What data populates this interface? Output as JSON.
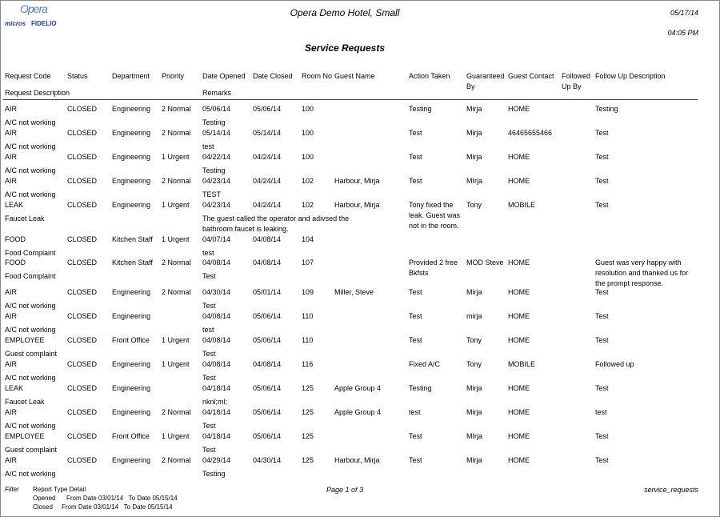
{
  "header": {
    "logo": {
      "brand": "Opera",
      "micros": "micros",
      "fidelio": "FIDELIO"
    },
    "hotel": "Opera Demo Hotel, Small",
    "date": "05/17/14",
    "time": "04:05 PM",
    "title": "Service Requests"
  },
  "table": {
    "header": {
      "code": "Request Code",
      "status": "Status",
      "department": "Department",
      "priority": "Priority",
      "opened": "Date Opened",
      "closed": "Date Closed",
      "room": "Room No",
      "guest": "Guest Name",
      "action": "Action Taken",
      "guaranteed": "Guaranteed By",
      "contact": "Guest Contact",
      "followed": "Followed Up By",
      "follow_desc": "Follow Up Description",
      "description": "Request Description",
      "remarks": "Remarks"
    },
    "rows": [
      {
        "code": "AIR",
        "status": "CLOSED",
        "department": "Engineering",
        "priority": "2 Normal",
        "opened": "05/06/14",
        "closed": "05/06/14",
        "room": "100",
        "action": "Testing",
        "guaranteed": "Mirja",
        "contact": "HOME",
        "follow_desc": "Testing",
        "description": "A/C not working",
        "remarks": "Testing"
      },
      {
        "code": "AIR",
        "status": "CLOSED",
        "department": "Engineering",
        "priority": "2 Normal",
        "opened": "05/14/14",
        "closed": "05/14/14",
        "room": "100",
        "action": "Test",
        "guaranteed": "Mirja",
        "contact": "46465655466",
        "follow_desc": "Test",
        "description": "A/C not working",
        "remarks": "test"
      },
      {
        "code": "AIR",
        "status": "CLOSED",
        "department": "Engineering",
        "priority": "1 Urgent",
        "opened": "04/22/14",
        "closed": "04/24/14",
        "room": "100",
        "action": "Test",
        "guaranteed": "Mirja",
        "contact": "HOME",
        "follow_desc": "Test",
        "description": "A/C not working",
        "remarks": "Testing"
      },
      {
        "code": "AIR",
        "status": "CLOSED",
        "department": "Engineering",
        "priority": "2 Normal",
        "opened": "04/23/14",
        "closed": "04/24/14",
        "room": "102",
        "guest": "Harbour, Mirja",
        "action": "Test",
        "guaranteed": "MIrja",
        "contact": "HOME",
        "follow_desc": "Test",
        "description": "A/C not working",
        "remarks": "TEST"
      },
      {
        "code": "LEAK",
        "status": "CLOSED",
        "department": "Engineering",
        "priority": "1 Urgent",
        "opened": "04/23/14",
        "closed": "04/24/14",
        "room": "102",
        "guest": "Harbour, Mirja",
        "action": "Tony fixed the leak. Guest was not in the room.",
        "guaranteed": "Tony",
        "contact": "MOBILE",
        "follow_desc": "Test",
        "description": "Faucet Leak",
        "remarks": "The guest called the operator and adivsed the bathroom faucet is leaking."
      },
      {
        "code": "FOOD",
        "status": "CLOSED",
        "department": "Kitchen Staff",
        "priority": "1 Urgent",
        "opened": "04/07/14",
        "closed": "04/08/14",
        "room": "104",
        "description": "Food Complaint",
        "remarks": "test"
      },
      {
        "code": "FOOD",
        "status": "CLOSED",
        "department": "Kitchen Staff",
        "priority": "2 Normal",
        "opened": "04/08/14",
        "closed": "04/08/14",
        "room": "107",
        "action": "Provided 2 free Bkfsts",
        "guaranteed": "MOD Steve",
        "contact": "HOME",
        "follow_desc": "Guest was very happy with resolution and thanked us for the prompt response.",
        "description": "Food Complaint",
        "remarks": "Test"
      },
      {
        "code": "AIR",
        "status": "CLOSED",
        "department": "Engineering",
        "priority": "2 Normal",
        "opened": "04/30/14",
        "closed": "05/01/14",
        "room": "109",
        "guest": "Miller, Steve",
        "action": "Test",
        "guaranteed": "Mirja",
        "contact": "HOME",
        "follow_desc": "Test",
        "description": "A/C not working",
        "remarks": "Test"
      },
      {
        "code": "AIR",
        "status": "CLOSED",
        "department": "Engineering",
        "opened": "04/08/14",
        "closed": "05/06/14",
        "room": "110",
        "action": "Test",
        "guaranteed": "mirja",
        "contact": "HOME",
        "follow_desc": "Test",
        "description": "A/C not working",
        "remarks": "test"
      },
      {
        "code": "EMPLOYEE",
        "status": "CLOSED",
        "department": "Front Office",
        "priority": "1 Urgent",
        "opened": "04/08/14",
        "closed": "05/06/14",
        "room": "110",
        "action": "Test",
        "guaranteed": "Tony",
        "contact": "HOME",
        "follow_desc": "Test",
        "description": "Guest complaint",
        "remarks": "Test"
      },
      {
        "code": "AIR",
        "status": "CLOSED",
        "department": "Engineering",
        "priority": "1 Urgent",
        "opened": "04/08/14",
        "closed": "04/08/14",
        "room": "116",
        "action": "Fixed A/C",
        "guaranteed": "Tony",
        "contact": "MOBILE",
        "follow_desc": "Followed up",
        "description": "A/C not working",
        "remarks": "Test"
      },
      {
        "code": "LEAK",
        "status": "CLOSED",
        "department": "Engineering",
        "opened": "04/18/14",
        "closed": "05/06/14",
        "room": "125",
        "guest": "Apple Group 4",
        "action": "Testing",
        "guaranteed": "Mirja",
        "contact": "HOME",
        "follow_desc": "Test",
        "description": "Faucet Leak",
        "remarks": "nknl;ml;"
      },
      {
        "code": "AIR",
        "status": "CLOSED",
        "department": "Engineering",
        "priority": "2 Normal",
        "opened": "04/18/14",
        "closed": "05/06/14",
        "room": "125",
        "guest": "Apple Group 4",
        "action": "test",
        "guaranteed": "Mirja",
        "contact": "HOME",
        "follow_desc": "test",
        "description": "A/C not working",
        "remarks": "Test"
      },
      {
        "code": "EMPLOYEE",
        "status": "CLOSED",
        "department": "Front Office",
        "priority": "1 Urgent",
        "opened": "04/18/14",
        "closed": "05/06/14",
        "room": "125",
        "action": "Test",
        "guaranteed": "MIrja",
        "contact": "HOME",
        "follow_desc": "Test",
        "description": "Guest complaint",
        "remarks": "Test"
      },
      {
        "code": "AIR",
        "status": "CLOSED",
        "department": "Engineering",
        "priority": "2 Normal",
        "opened": "04/29/14",
        "closed": "04/30/14",
        "room": "125",
        "guest": "Harbour, Mirja",
        "action": "Test",
        "guaranteed": "Mirja",
        "contact": "HOME",
        "follow_desc": "Test",
        "description": "A/C not working",
        "remarks": "Testing"
      }
    ]
  },
  "footer": {
    "filter": "Filter",
    "report_type": "Report Type Detail",
    "opened_label": "Opened",
    "opened_range": "From Date 03/01/14   To Date 05/15/14",
    "closed_label": "Closed",
    "closed_range": "From Date 03/01/14   To Date 05/15/14",
    "page": "Page 1 of 3",
    "report_name": "service_requests"
  }
}
